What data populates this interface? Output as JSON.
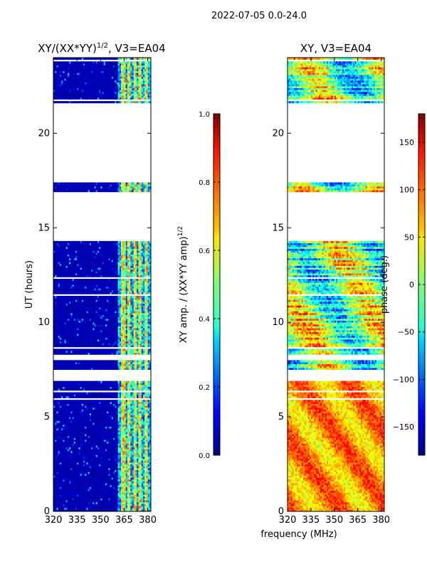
{
  "chart_data": {
    "type": "heatmap",
    "suptitle": "2022-07-05 0.0-24.0",
    "shared_xlabel": "frequency (MHz)",
    "panels": [
      {
        "id": "amp",
        "title": "XY/(XX*YY)¹ᐟ², V3=EA04",
        "title_main": "XY/(XX*YY)",
        "title_sup": "1/2",
        "title_tail": ", V3=EA04",
        "ylabel": "UT (hours)",
        "xlim": [
          320,
          382
        ],
        "ylim": [
          0,
          24
        ],
        "xticks": [
          320,
          335,
          350,
          365,
          380
        ],
        "yticks": [
          0,
          5,
          10,
          15,
          20
        ],
        "colorbar": {
          "label_main": "XY amp. / (XX*YY amp)",
          "label_sup": "1/2",
          "range": [
            0.0,
            1.0
          ],
          "ticks": [
            "0.0",
            "0.2",
            "0.4",
            "0.6",
            "0.8",
            "1.0"
          ],
          "tick_values": [
            0.0,
            0.2,
            0.4,
            0.6,
            0.8,
            1.0
          ],
          "colormap": "jet"
        }
      },
      {
        "id": "phase",
        "title": "XY, V3=EA04",
        "ylabel": "",
        "xlim": [
          320,
          382
        ],
        "ylim": [
          0,
          24
        ],
        "xticks": [
          320,
          335,
          350,
          365,
          380
        ],
        "yticks": [
          0,
          5,
          10,
          15,
          20
        ],
        "colorbar": {
          "label_main": "phase (deg.)",
          "range": [
            -180,
            180
          ],
          "ticks": [
            "−150",
            "−100",
            "−50",
            "0",
            "50",
            "100",
            "150"
          ],
          "tick_values": [
            -150,
            -100,
            -50,
            0,
            50,
            100,
            150
          ],
          "colormap": "jet"
        }
      }
    ],
    "data_time_ranges_hours": [
      [
        0.0,
        6.9
      ],
      [
        7.4,
        8.0
      ],
      [
        8.3,
        14.3
      ],
      [
        16.9,
        17.4
      ],
      [
        21.6,
        24.0
      ]
    ],
    "amp_bright_freq_bands_mhz": [
      [
        363,
        366
      ],
      [
        367,
        369
      ],
      [
        371,
        373
      ],
      [
        374,
        376
      ],
      [
        378,
        380
      ]
    ]
  }
}
